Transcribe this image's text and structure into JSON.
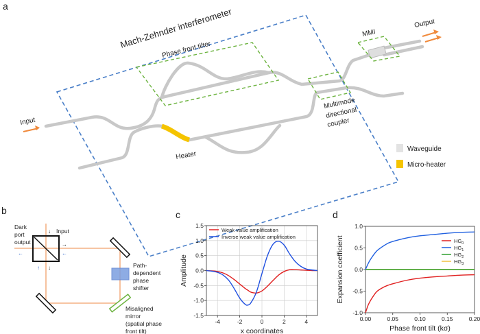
{
  "panels": {
    "a": "a",
    "b": "b",
    "c": "c",
    "d": "d"
  },
  "panel_a": {
    "mzi_label": "Mach-Zehnder interferometer",
    "tilter_label": "Phase front tilter",
    "input_label": "Input",
    "output_label": "Output",
    "mmi_label": "MMI",
    "heater_label": "Heater",
    "coupler_label": [
      "Multimode",
      "directional",
      "coupler"
    ],
    "legend": [
      {
        "label": "Waveguide",
        "color": "#e3e3e3"
      },
      {
        "label": "Micro-heater",
        "color": "#f5c400"
      }
    ],
    "colors": {
      "mzi_box": "#4a7fc8",
      "sub_box": "#6cb33f",
      "arrow": "#f08a3c",
      "heater": "#f5c400",
      "waveguide": "#cfcfcf"
    }
  },
  "panel_b": {
    "dark_port": [
      "Dark",
      "port",
      "output"
    ],
    "input_label": "Input",
    "phase_shifter": [
      "Path-",
      "dependent",
      "phase",
      "shifter"
    ],
    "misaligned": [
      "Misaligned",
      "mirror",
      "(spatial phase",
      "front tilt)"
    ],
    "colors": {
      "beam": "#f2a06a",
      "shifter": "#7b9ee0",
      "mirror_tilted": "#6cb33f"
    }
  },
  "chart_data": [
    {
      "type": "line",
      "panel": "c",
      "xlabel": "x coordinates",
      "ylabel": "Amplitude",
      "xlim": [
        -5,
        5
      ],
      "ylim": [
        -1.5,
        1.5
      ],
      "xticks": [
        "-4",
        "-2",
        "0",
        "2",
        "4"
      ],
      "xtick_values": [
        -4,
        -2,
        0,
        2,
        4
      ],
      "yticks": [
        "-1.5",
        "-1.0",
        "-0.5",
        "0.0",
        "0.5",
        "1.0",
        "1.5"
      ],
      "ytick_values": [
        -1.5,
        -1,
        -0.5,
        0,
        0.5,
        1,
        1.5
      ],
      "grid": true,
      "legend_position": "top",
      "x": [
        -5,
        -4.5,
        -4,
        -3.5,
        -3,
        -2.5,
        -2,
        -1.5,
        -1.25,
        -1,
        -0.5,
        0,
        0.5,
        1,
        1.5,
        2,
        2.5,
        3,
        3.5,
        4,
        4.5,
        5
      ],
      "series": [
        {
          "name": "Weak value amplification",
          "color": "#e02020",
          "values": [
            0,
            -0.01,
            -0.03,
            -0.08,
            -0.17,
            -0.3,
            -0.45,
            -0.6,
            -0.66,
            -0.72,
            -0.75,
            -0.68,
            -0.52,
            -0.33,
            -0.15,
            -0.03,
            0.03,
            0.03,
            0.02,
            0.01,
            0,
            0
          ]
        },
        {
          "name": "Inverse weak value amplification",
          "color": "#2050e0",
          "values": [
            0,
            -0.02,
            -0.06,
            -0.15,
            -0.32,
            -0.6,
            -0.92,
            -1.13,
            -1.15,
            -1.08,
            -0.72,
            -0.1,
            0.5,
            0.88,
            0.98,
            0.85,
            0.55,
            0.3,
            0.14,
            0.05,
            0.02,
            0
          ]
        }
      ]
    },
    {
      "type": "line",
      "panel": "d",
      "xlabel": "Phase front tilt (kσ)",
      "ylabel": "Expansion coefficient",
      "xlim": [
        0,
        0.2
      ],
      "ylim": [
        -1,
        1
      ],
      "xticks": [
        "0.00",
        "0.05",
        "0.10",
        "0.15",
        "0.20"
      ],
      "xtick_values": [
        0,
        0.05,
        0.1,
        0.15,
        0.2
      ],
      "yticks": [
        "-1.0",
        "-0.5",
        "0.0",
        "0.5",
        "1.0"
      ],
      "ytick_values": [
        -1,
        -0.5,
        0,
        0.5,
        1
      ],
      "grid": false,
      "legend_position": "right",
      "x": [
        0,
        0.005,
        0.01,
        0.02,
        0.03,
        0.04,
        0.05,
        0.075,
        0.1,
        0.125,
        0.15,
        0.175,
        0.2
      ],
      "series": [
        {
          "name": "HG",
          "sub": "0",
          "color": "#e02020",
          "values": [
            -1,
            -0.82,
            -0.7,
            -0.52,
            -0.43,
            -0.37,
            -0.33,
            -0.25,
            -0.2,
            -0.17,
            -0.15,
            -0.13,
            -0.12
          ]
        },
        {
          "name": "HG",
          "sub": "1",
          "color": "#2060e0",
          "values": [
            0,
            0.14,
            0.25,
            0.42,
            0.52,
            0.6,
            0.65,
            0.73,
            0.78,
            0.81,
            0.84,
            0.86,
            0.87
          ]
        },
        {
          "name": "HG",
          "sub": "2",
          "color": "#30a030",
          "values": [
            0,
            0,
            0,
            0,
            0,
            0,
            0,
            0,
            0,
            0,
            0,
            0,
            0
          ]
        },
        {
          "name": "HG",
          "sub": "3",
          "color": "#f0c040",
          "values": [
            0,
            0,
            0,
            0,
            0,
            0,
            0,
            0,
            0,
            0,
            0,
            0,
            0
          ]
        }
      ]
    }
  ]
}
